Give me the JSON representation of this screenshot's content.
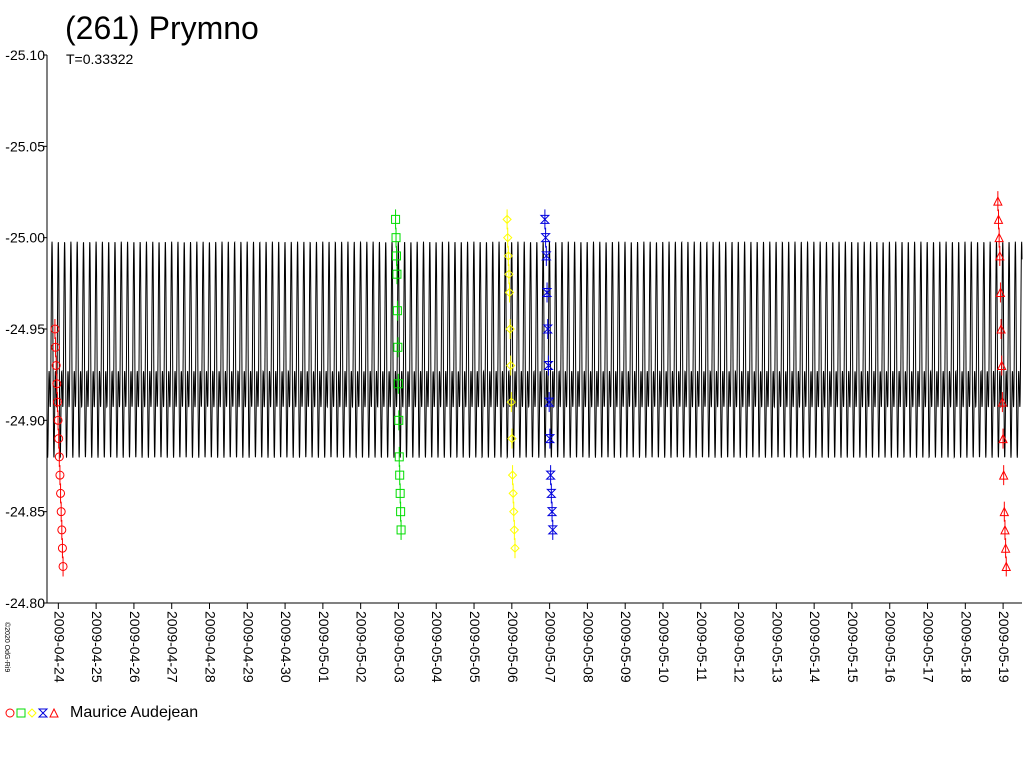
{
  "chart_data": {
    "type": "scatter",
    "title": "(261) Prymno",
    "subtitle": "T=0.33322",
    "y_ticks": [
      "-25.10",
      "-25.05",
      "-25.00",
      "-24.95",
      "-24.90",
      "-24.85",
      "-24.80"
    ],
    "y_tick_values": [
      -25.1,
      -25.05,
      -25.0,
      -24.95,
      -24.9,
      -24.85,
      -24.8
    ],
    "ylim": [
      -25.1,
      -24.8
    ],
    "y_inverted": true,
    "x_ticks": [
      "2009-04-24",
      "2009-04-25",
      "2009-04-26",
      "2009-04-27",
      "2009-04-28",
      "2009-04-29",
      "2009-04-30",
      "2009-05-01",
      "2009-05-02",
      "2009-05-03",
      "2009-05-04",
      "2009-05-05",
      "2009-05-06",
      "2009-05-07",
      "2009-05-08",
      "2009-05-09",
      "2009-05-10",
      "2009-05-11",
      "2009-05-12",
      "2009-05-13",
      "2009-05-14",
      "2009-05-15",
      "2009-05-16",
      "2009-05-17",
      "2009-05-18",
      "2009-05-19"
    ],
    "xlim": [
      "2009-04-23 16:48",
      "2009-05-19 12:00"
    ],
    "model": {
      "period_days": 0.33322,
      "mean": -24.93,
      "min": -25.0,
      "max": -24.86,
      "color": "#000000"
    },
    "series": [
      {
        "marker": "circle",
        "color": "#ff0000",
        "x_range": [
          "2009-04-23 21:50",
          "2009-04-24 03:00"
        ],
        "y": [
          -24.95,
          -24.94,
          -24.93,
          -24.92,
          -24.91,
          -24.9,
          -24.89,
          -24.88,
          -24.87,
          -24.86,
          -24.85,
          -24.84,
          -24.83,
          -24.82
        ]
      },
      {
        "marker": "square",
        "color": "#00dd00",
        "x_range": [
          "2009-05-02 22:10",
          "2009-05-03 01:40"
        ],
        "y": [
          -25.01,
          -25.0,
          -24.99,
          -24.98,
          -24.96,
          -24.94,
          -24.92,
          -24.9,
          -24.88,
          -24.87,
          -24.86,
          -24.85,
          -24.84
        ]
      },
      {
        "marker": "diamond",
        "color": "#ffff00",
        "x_range": [
          "2009-05-05 21:00",
          "2009-05-06 02:00"
        ],
        "y": [
          -25.01,
          -25.0,
          -24.99,
          -24.98,
          -24.97,
          -24.95,
          -24.93,
          -24.91,
          -24.89,
          -24.87,
          -24.86,
          -24.85,
          -24.84,
          -24.83
        ]
      },
      {
        "marker": "hourglass",
        "color": "#0000dd",
        "x_range": [
          "2009-05-06 21:00",
          "2009-05-07 02:00"
        ],
        "y": [
          -25.01,
          -25.0,
          -24.99,
          -24.97,
          -24.95,
          -24.93,
          -24.91,
          -24.89,
          -24.87,
          -24.86,
          -24.85,
          -24.84
        ]
      },
      {
        "marker": "triangle",
        "color": "#ff0000",
        "x_range": [
          "2009-05-18 20:40",
          "2009-05-19 02:00"
        ],
        "y": [
          -25.02,
          -25.01,
          -25.0,
          -24.99,
          -24.97,
          -24.95,
          -24.93,
          -24.91,
          -24.89,
          -24.87,
          -24.85,
          -24.84,
          -24.83,
          -24.82
        ]
      }
    ],
    "legend": "Maurice Audejean",
    "legend_markers": [
      {
        "marker": "circle",
        "color": "#ff0000"
      },
      {
        "marker": "square",
        "color": "#00dd00"
      },
      {
        "marker": "diamond",
        "color": "#ffff00"
      },
      {
        "marker": "hourglass",
        "color": "#0000dd"
      },
      {
        "marker": "triangle",
        "color": "#ff0000"
      }
    ]
  },
  "copyright": "©2020 OdG-Ri9"
}
